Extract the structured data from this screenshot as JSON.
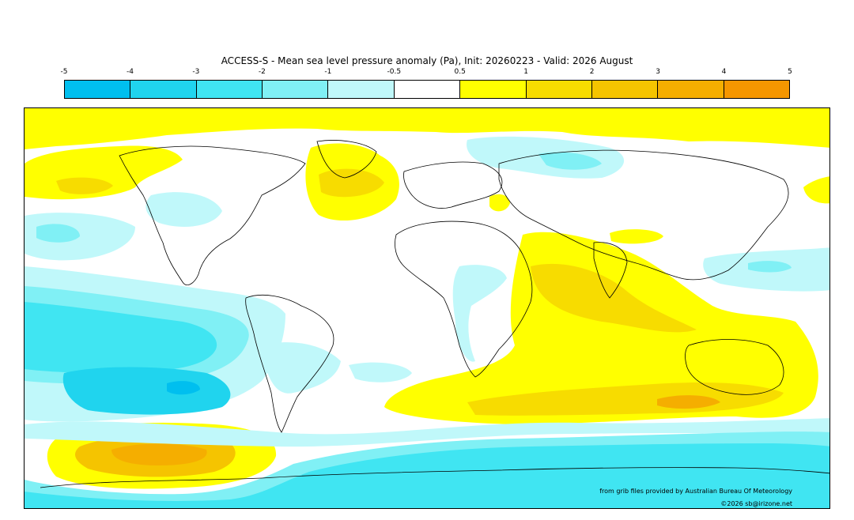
{
  "title": "ACCESS-S - Mean sea level pressure anomaly (Pa), Init: 20260223 - Valid: 2026 August",
  "colorbar": {
    "ticks": [
      "-5",
      "-4",
      "-3",
      "-2",
      "-1",
      "-0.5",
      "0.5",
      "1",
      "2",
      "3",
      "4",
      "5"
    ],
    "colors": [
      "#00bfef",
      "#20d4ee",
      "#40e5f2",
      "#80f0f5",
      "#c0f8fa",
      "#ffffff",
      "#ffff00",
      "#f7dc00",
      "#f5c400",
      "#f5ae00",
      "#f59600"
    ]
  },
  "credits": {
    "source": "from grib files provided by Australian Bureau Of Meteorology",
    "copyright": "©2026 sb@irizone.net"
  }
}
